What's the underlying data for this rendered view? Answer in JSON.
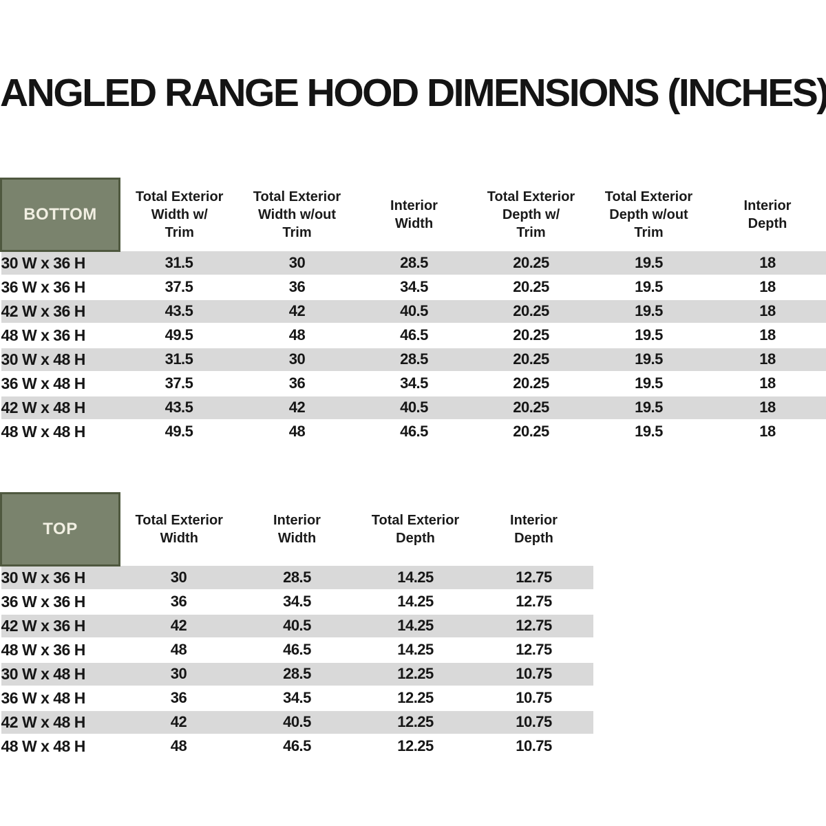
{
  "page": {
    "title": "ANGLED RANGE HOOD DIMENSIONS (INCHES)"
  },
  "colors": {
    "header_green": "#7A836D",
    "header_green_border": "#4F583F",
    "header_label_text": "#F1EFE2",
    "row_stripe_gray": "#D9D9D9",
    "row_white": "#FFFFFF",
    "text_black": "#1A1A1A"
  },
  "bottom_table": {
    "corner_label": "BOTTOM",
    "columns": [
      "Total Exterior\nWidth w/\nTrim",
      "Total Exterior\nWidth w/out\nTrim",
      "Interior\nWidth",
      "Total Exterior\nDepth w/\nTrim",
      "Total Exterior\nDepth w/out\nTrim",
      "Interior\nDepth"
    ],
    "rows": [
      {
        "label": "30 W x 36 H",
        "values": [
          "31.5",
          "30",
          "28.5",
          "20.25",
          "19.5",
          "18"
        ]
      },
      {
        "label": "36 W x 36 H",
        "values": [
          "37.5",
          "36",
          "34.5",
          "20.25",
          "19.5",
          "18"
        ]
      },
      {
        "label": "42 W x 36 H",
        "values": [
          "43.5",
          "42",
          "40.5",
          "20.25",
          "19.5",
          "18"
        ]
      },
      {
        "label": "48 W x 36 H",
        "values": [
          "49.5",
          "48",
          "46.5",
          "20.25",
          "19.5",
          "18"
        ]
      },
      {
        "label": "30 W x 48 H",
        "values": [
          "31.5",
          "30",
          "28.5",
          "20.25",
          "19.5",
          "18"
        ]
      },
      {
        "label": "36 W x 48 H",
        "values": [
          "37.5",
          "36",
          "34.5",
          "20.25",
          "19.5",
          "18"
        ]
      },
      {
        "label": "42 W x 48 H",
        "values": [
          "43.5",
          "42",
          "40.5",
          "20.25",
          "19.5",
          "18"
        ]
      },
      {
        "label": "48 W x 48 H",
        "values": [
          "49.5",
          "48",
          "46.5",
          "20.25",
          "19.5",
          "18"
        ]
      }
    ]
  },
  "top_table": {
    "corner_label": "TOP",
    "columns": [
      "Total Exterior\nWidth",
      "Interior\nWidth",
      "Total Exterior\nDepth",
      "Interior\nDepth"
    ],
    "rows": [
      {
        "label": "30 W x 36 H",
        "values": [
          "30",
          "28.5",
          "14.25",
          "12.75"
        ]
      },
      {
        "label": "36 W x 36 H",
        "values": [
          "36",
          "34.5",
          "14.25",
          "12.75"
        ]
      },
      {
        "label": "42 W x 36 H",
        "values": [
          "42",
          "40.5",
          "14.25",
          "12.75"
        ]
      },
      {
        "label": "48 W x 36 H",
        "values": [
          "48",
          "46.5",
          "14.25",
          "12.75"
        ]
      },
      {
        "label": "30 W x 48 H",
        "values": [
          "30",
          "28.5",
          "12.25",
          "10.75"
        ]
      },
      {
        "label": "36 W x 48 H",
        "values": [
          "36",
          "34.5",
          "12.25",
          "10.75"
        ]
      },
      {
        "label": "42 W x 48 H",
        "values": [
          "42",
          "40.5",
          "12.25",
          "10.75"
        ]
      },
      {
        "label": "48 W x 48 H",
        "values": [
          "48",
          "46.5",
          "12.25",
          "10.75"
        ]
      }
    ]
  }
}
